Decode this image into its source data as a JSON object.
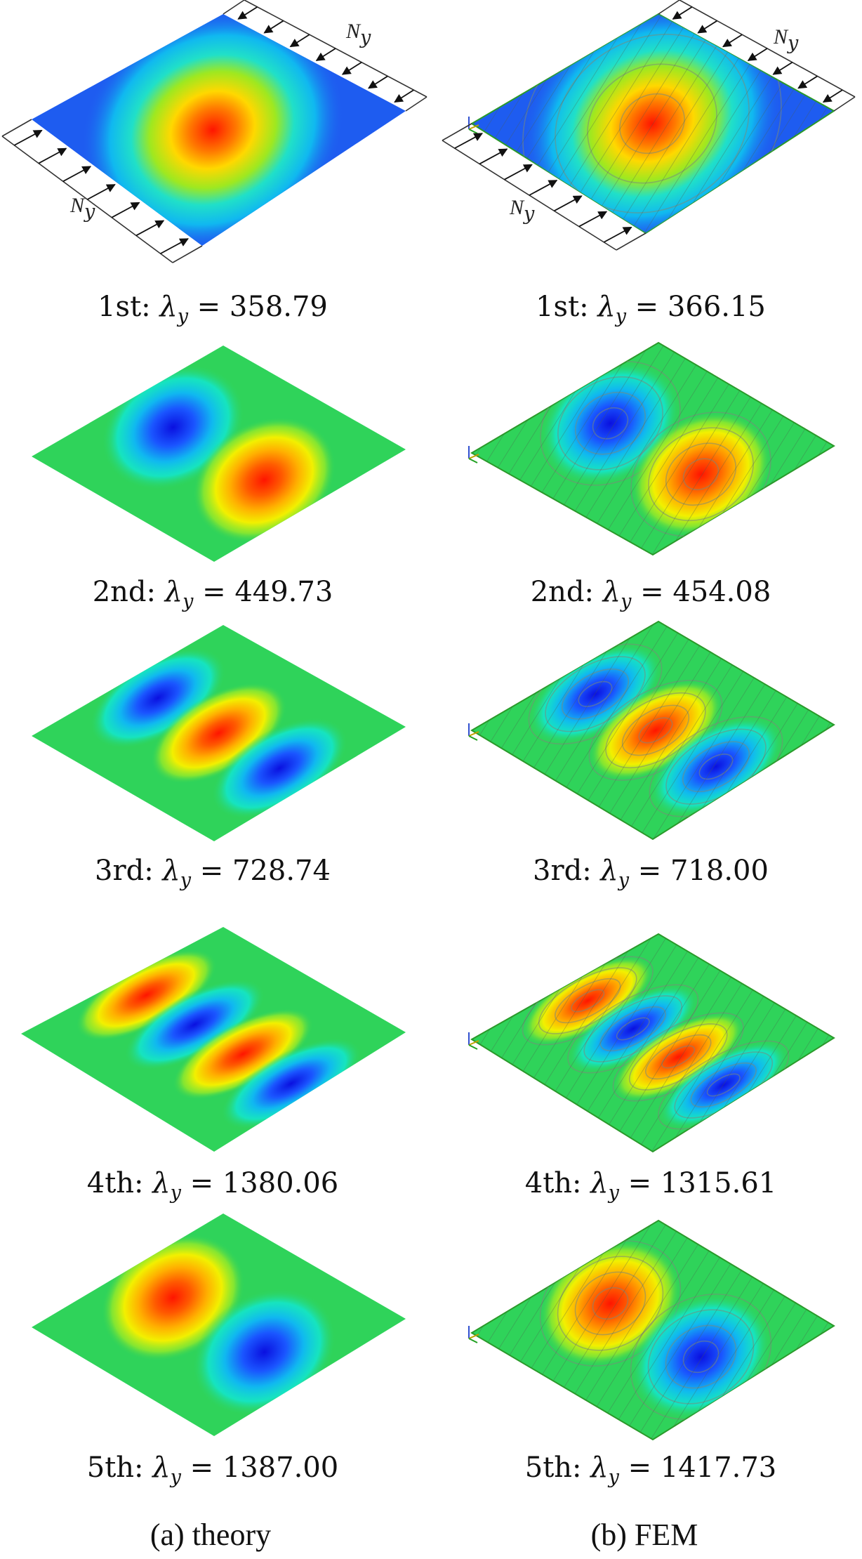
{
  "panels": {
    "theory": {
      "caption": "(a) theory",
      "modes": [
        {
          "label": "1st:",
          "symbol": "λ",
          "subscript": "y",
          "value": "358.79"
        },
        {
          "label": "2nd:",
          "symbol": "λ",
          "subscript": "y",
          "value": "449.73"
        },
        {
          "label": "3rd:",
          "symbol": "λ",
          "subscript": "y",
          "value": "728.74"
        },
        {
          "label": "4th:",
          "symbol": "λ",
          "subscript": "y",
          "value": "1380.06"
        },
        {
          "label": "5th:",
          "symbol": "λ",
          "subscript": "y",
          "value": "1387.00"
        }
      ]
    },
    "fem": {
      "caption": "(b) FEM",
      "modes": [
        {
          "label": "1st:",
          "symbol": "λ",
          "subscript": "y",
          "value": "366.15"
        },
        {
          "label": "2nd:",
          "symbol": "λ",
          "subscript": "y",
          "value": "454.08"
        },
        {
          "label": "3rd:",
          "symbol": "λ",
          "subscript": "y",
          "value": "718.00"
        },
        {
          "label": "4th:",
          "symbol": "λ",
          "subscript": "y",
          "value": "1315.61"
        },
        {
          "label": "5th:",
          "symbol": "λ",
          "subscript": "y",
          "value": "1417.73"
        }
      ]
    }
  },
  "load_labels": {
    "symbol": "N",
    "subscript": "y"
  },
  "colors": {
    "background_first_mode": "#1e5cf0",
    "background_other_modes": "#2fd35a",
    "peak_positive": "#ff1a00",
    "peak_negative": "#0a1fd8",
    "fem_band_lines": "#7a8a7a"
  },
  "mode_lobes": [
    [
      1
    ],
    [
      -1,
      1
    ],
    [
      -1,
      1,
      -1
    ],
    [
      1,
      -1,
      1,
      -1
    ],
    [
      1,
      -1
    ]
  ]
}
